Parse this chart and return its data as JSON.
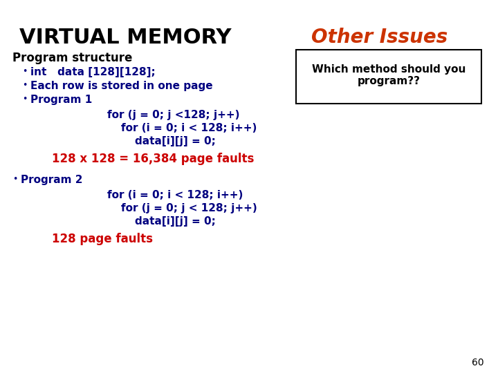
{
  "title": "VIRTUAL MEMORY",
  "subtitle": "Other Issues",
  "title_color": "#000000",
  "subtitle_color": "#cc3300",
  "bg_color": "#ffffff",
  "section_header": "Program structure",
  "section_color": "#000000",
  "bullet_color": "#000080",
  "red_color": "#cc0000",
  "bullets": [
    "int   data [128][128];",
    "Each row is stored in one page",
    "Program 1"
  ],
  "code1": [
    "for (j = 0; j <128; j++)",
    "for (i = 0; i < 128; i++)",
    "data[i][j] = 0;"
  ],
  "fault1": "128 x 128 = 16,384 page faults",
  "bullet2": "Program 2",
  "code2": [
    "for (i = 0; i < 128; i++)",
    "for (j = 0; j < 128; j++)",
    "data[i][j] = 0;"
  ],
  "fault2": "128 page faults",
  "box_text": "Which method should you\nprogram??",
  "page_num": "60"
}
